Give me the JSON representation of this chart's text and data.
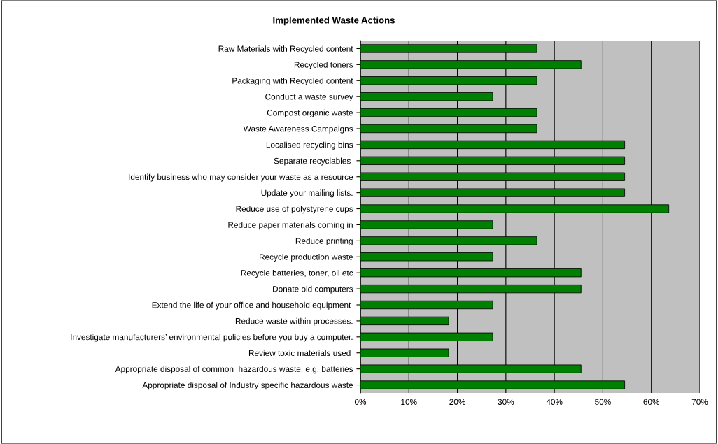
{
  "chart_data": {
    "type": "bar",
    "orientation": "horizontal",
    "title": "Implemented Waste Actions",
    "categories": [
      "Raw Materials with Recycled content",
      "Recycled toners",
      "Packaging with Recycled content",
      "Conduct a waste survey",
      "Compost organic waste",
      "Waste Awareness Campaigns",
      "Localised recycling bins",
      "Separate recyclables ",
      "Identify business who may consider your waste as a resource",
      "Update your mailing lists.",
      "Reduce use of polystyrene cups",
      "Reduce paper materials coming in",
      "Reduce printing",
      "Recycle production waste",
      "Recycle batteries, toner, oil etc",
      "Donate old computers",
      "Extend the life of your office and household equipment ",
      "Reduce waste within processes.",
      "Investigate manufacturers’ environmental policies before you buy a computer.",
      "Review toxic materials used ",
      "Appropriate disposal of common  hazardous waste, e.g. batteries",
      "Appropriate disposal of Industry specific hazardous waste"
    ],
    "values": [
      36.4,
      45.5,
      36.4,
      27.3,
      36.4,
      36.4,
      54.5,
      54.5,
      54.5,
      54.5,
      63.6,
      27.3,
      36.4,
      27.3,
      45.5,
      45.5,
      27.3,
      18.2,
      27.3,
      18.2,
      45.5,
      54.5
    ],
    "color": "#008000",
    "xlim": [
      0,
      70
    ],
    "xticks": [
      {
        "value": 0,
        "label": "0%"
      },
      {
        "value": 10,
        "label": "10%"
      },
      {
        "value": 20,
        "label": "20%"
      },
      {
        "value": 30,
        "label": "30%"
      },
      {
        "value": 40,
        "label": "40%"
      },
      {
        "value": 50,
        "label": "50%"
      },
      {
        "value": 60,
        "label": "60%"
      },
      {
        "value": 70,
        "label": "70%"
      }
    ],
    "grid": "x",
    "legend": false
  }
}
